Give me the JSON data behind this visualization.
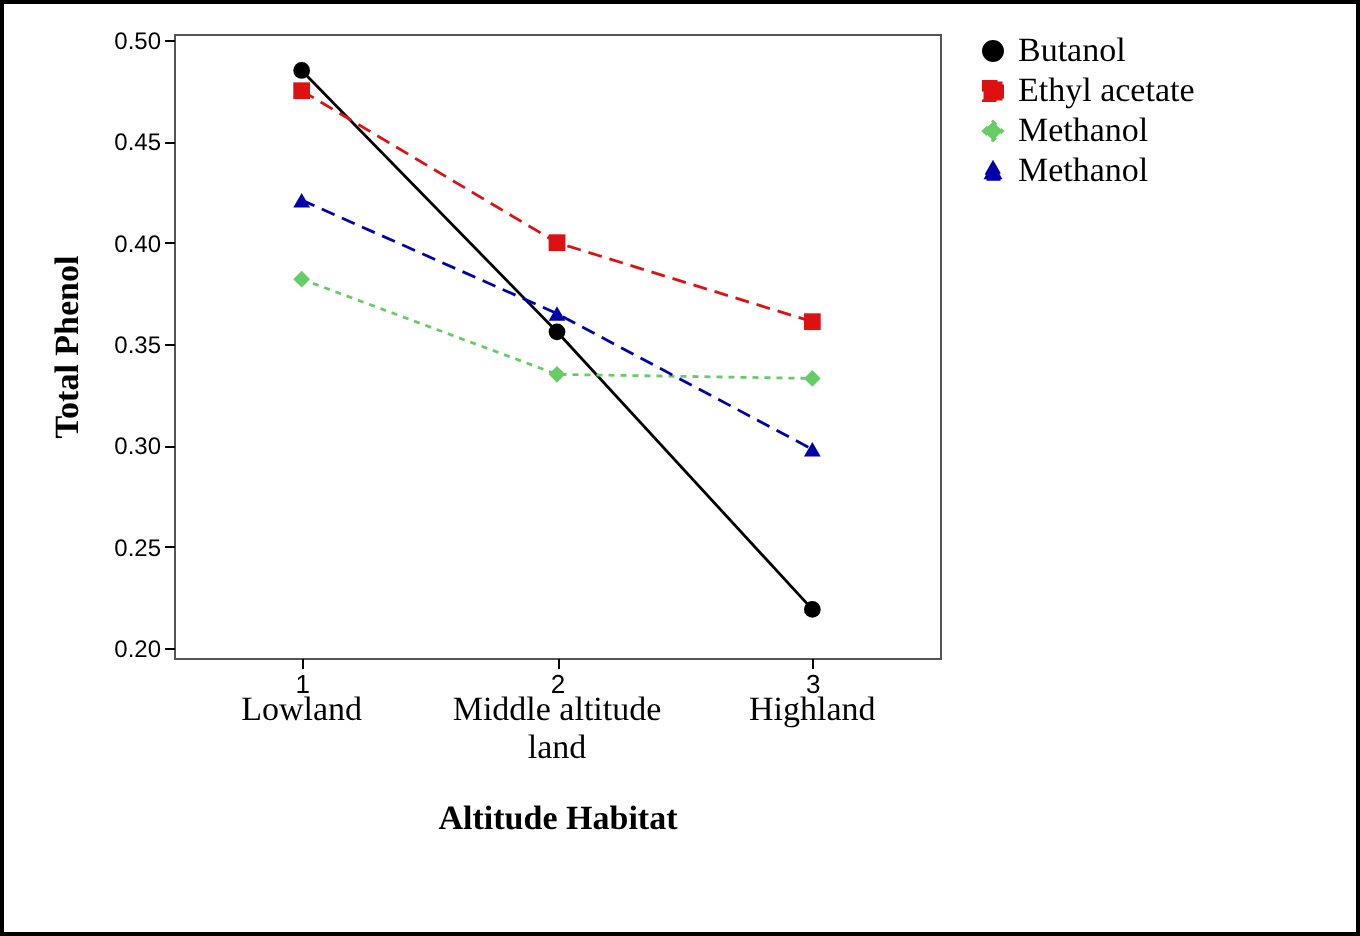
{
  "chart_data": {
    "type": "line",
    "xlabel": "Altitude Habitat",
    "ylabel": "Total Phenol",
    "x": [
      1,
      2,
      3
    ],
    "xlim": [
      0.5,
      3.5
    ],
    "xticks": [
      1,
      2,
      3
    ],
    "ylim": [
      0.195,
      0.503
    ],
    "yticks": [
      {
        "value": 0.2,
        "label": "0.20"
      },
      {
        "value": 0.25,
        "label": "0.25"
      },
      {
        "value": 0.3,
        "label": "0.30"
      },
      {
        "value": 0.35,
        "label": "0.35"
      },
      {
        "value": 0.4,
        "label": "0.40"
      },
      {
        "value": 0.45,
        "label": "0.45"
      },
      {
        "value": 0.5,
        "label": "0.50"
      }
    ],
    "annotations": [
      "Lowland",
      "Middle altitude land",
      "Highland"
    ],
    "legend": "right",
    "grid": false,
    "series": [
      {
        "name": "Butanol",
        "color": "#000000",
        "marker": "circle",
        "line_style": "solid",
        "values": [
          0.485,
          0.356,
          0.219
        ]
      },
      {
        "name": "Ethyl acetate",
        "color": "#dd1111",
        "marker": "square",
        "line_style": "dashed",
        "values": [
          0.475,
          0.4,
          0.361
        ]
      },
      {
        "name": "Methanol",
        "color": "#66cc66",
        "marker": "diamond",
        "line_style": "dotted",
        "values": [
          0.382,
          0.335,
          0.333
        ]
      },
      {
        "name": "Methanol",
        "color": "#0000aa",
        "marker": "triangle",
        "line_style": "dashed",
        "values": [
          0.421,
          0.365,
          0.298
        ]
      }
    ]
  }
}
